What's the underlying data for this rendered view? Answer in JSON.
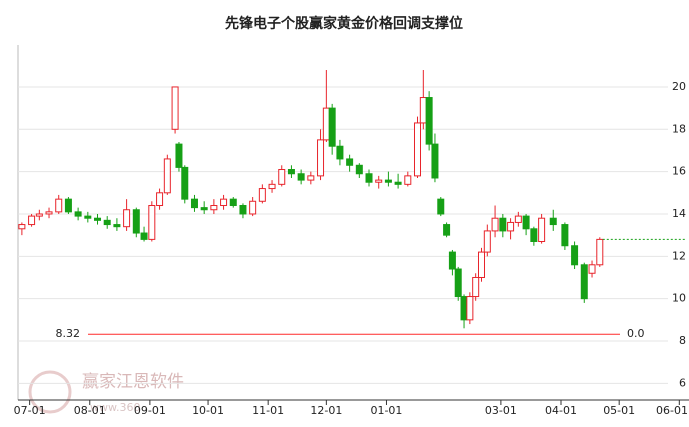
{
  "chart_data": {
    "type": "candlestick",
    "title": "先锋电子个股赢家黄金价格回调支撑位",
    "watermark": "赢家江恩软件",
    "watermark_url": "www.360",
    "up_color": "#e8242b",
    "down_color": "#16a016",
    "xlim": [
      -6,
      340
    ],
    "xticks": [
      {
        "value": 0,
        "label": "07-01"
      },
      {
        "value": 31,
        "label": "08-01"
      },
      {
        "value": 62,
        "label": "09-01"
      },
      {
        "value": 92,
        "label": "10-01"
      },
      {
        "value": 123,
        "label": "11-01"
      },
      {
        "value": 153,
        "label": "12-01"
      },
      {
        "value": 184,
        "label": "01-01"
      },
      {
        "value": 243,
        "label": "03-01"
      },
      {
        "value": 274,
        "label": "04-01"
      },
      {
        "value": 304,
        "label": "05-01"
      },
      {
        "value": 335,
        "label": "06-01"
      }
    ],
    "ylim": [
      5.7,
      23.2
    ],
    "yticks": [
      6,
      8,
      10,
      12,
      14,
      16,
      18,
      20
    ],
    "grid": true,
    "support_level": 8.32,
    "support_label": "8.32",
    "support_percent": {
      "value": 0,
      "label": "0.0"
    },
    "support_color": "#ff2a2a",
    "x": [
      -4,
      1,
      5,
      10,
      15,
      20,
      25,
      30,
      35,
      40,
      45,
      50,
      55,
      59,
      63,
      67,
      71,
      75,
      77,
      80,
      85,
      90,
      95,
      100,
      105,
      110,
      115,
      120,
      125,
      130,
      135,
      140,
      145,
      150,
      153,
      156,
      160,
      165,
      170,
      175,
      180,
      185,
      190,
      195,
      200,
      203,
      206,
      209,
      212,
      215,
      218,
      221,
      224,
      227,
      230,
      233,
      236,
      240,
      244,
      248,
      252,
      256,
      260,
      264,
      270,
      276,
      281,
      286,
      290,
      294
    ],
    "open": [
      13.3,
      13.5,
      13.9,
      14.0,
      14.1,
      14.7,
      14.1,
      13.9,
      13.8,
      13.7,
      13.5,
      13.4,
      14.2,
      13.1,
      12.8,
      14.4,
      15.0,
      18.0,
      17.3,
      16.2,
      14.7,
      14.3,
      14.2,
      14.4,
      14.7,
      14.4,
      14.0,
      14.6,
      15.2,
      15.4,
      16.1,
      15.9,
      15.6,
      15.8,
      17.5,
      19.0,
      17.2,
      16.6,
      16.3,
      15.9,
      15.5,
      15.6,
      15.5,
      15.4,
      15.8,
      18.3,
      19.5,
      17.3,
      14.7,
      13.5,
      12.2,
      11.4,
      10.1,
      9.0,
      10.1,
      11.0,
      12.2,
      13.2,
      13.8,
      13.2,
      13.6,
      13.9,
      13.3,
      12.7,
      13.8,
      13.5,
      12.5,
      11.6,
      11.2,
      11.6
    ],
    "high": [
      13.6,
      14.0,
      14.2,
      14.3,
      14.9,
      14.8,
      14.3,
      14.1,
      14.0,
      13.9,
      13.8,
      14.7,
      14.3,
      13.4,
      14.6,
      15.2,
      16.8,
      20.0,
      17.4,
      16.3,
      14.9,
      14.6,
      14.7,
      14.9,
      14.8,
      14.5,
      14.8,
      15.4,
      15.6,
      16.3,
      16.3,
      16.1,
      16.0,
      18.0,
      20.8,
      19.2,
      17.5,
      16.8,
      16.4,
      16.1,
      15.8,
      16.0,
      15.9,
      16.0,
      18.6,
      20.8,
      19.8,
      17.8,
      14.8,
      13.6,
      12.3,
      11.5,
      10.2,
      10.3,
      11.2,
      12.4,
      13.5,
      14.4,
      14.0,
      13.8,
      14.1,
      14.0,
      13.4,
      14.0,
      14.2,
      13.6,
      12.7,
      11.7,
      11.8,
      12.9
    ],
    "low": [
      13.0,
      13.4,
      13.7,
      13.8,
      14.0,
      14.0,
      13.7,
      13.6,
      13.5,
      13.3,
      13.2,
      13.2,
      12.9,
      12.7,
      12.7,
      14.2,
      14.9,
      17.8,
      16.0,
      14.5,
      14.1,
      14.0,
      14.0,
      14.2,
      14.3,
      13.8,
      13.9,
      14.5,
      15.0,
      15.3,
      15.7,
      15.4,
      15.4,
      15.6,
      17.4,
      16.8,
      16.3,
      16.0,
      15.7,
      15.3,
      15.2,
      15.3,
      15.2,
      15.3,
      15.7,
      18.0,
      17.0,
      15.5,
      13.9,
      12.9,
      11.1,
      9.9,
      8.6,
      8.8,
      9.9,
      10.8,
      12.0,
      12.9,
      12.9,
      12.8,
      13.4,
      13.0,
      12.5,
      12.6,
      13.2,
      12.3,
      11.4,
      9.8,
      11.0,
      11.5
    ],
    "close": [
      13.5,
      13.9,
      14.0,
      14.1,
      14.7,
      14.1,
      13.9,
      13.8,
      13.7,
      13.5,
      13.4,
      14.2,
      13.1,
      12.8,
      14.4,
      15.0,
      16.6,
      20.0,
      16.2,
      14.7,
      14.3,
      14.2,
      14.4,
      14.7,
      14.4,
      14.0,
      14.6,
      15.2,
      15.4,
      16.1,
      15.9,
      15.6,
      15.8,
      17.5,
      19.0,
      17.2,
      16.6,
      16.3,
      15.9,
      15.5,
      15.6,
      15.5,
      15.4,
      15.8,
      18.3,
      19.5,
      17.3,
      15.7,
      14.0,
      13.0,
      11.4,
      10.1,
      9.0,
      10.1,
      11.0,
      12.2,
      13.2,
      13.8,
      13.2,
      13.6,
      13.9,
      13.3,
      12.7,
      13.8,
      13.5,
      12.5,
      11.6,
      10.0,
      11.6,
      12.8
    ]
  }
}
